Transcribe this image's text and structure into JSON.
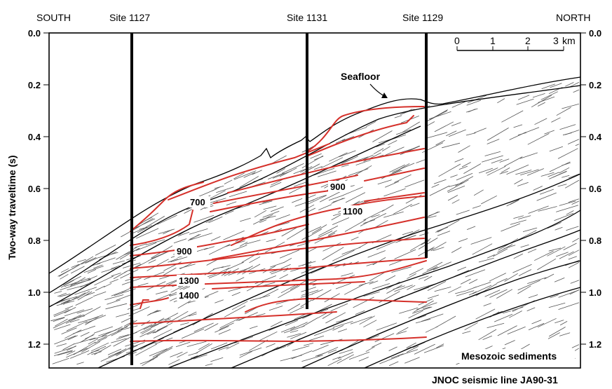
{
  "direction": {
    "left": "SOUTH",
    "right": "NORTH"
  },
  "sites": [
    "Site 1127",
    "Site 1131",
    "Site 1129"
  ],
  "axis": {
    "ylabel": "Two-way traveltime (s)",
    "ticks": [
      "0.0",
      "0.2",
      "0.4",
      "0.6",
      "0.8",
      "1.0",
      "1.2"
    ]
  },
  "scale": {
    "ticks": [
      "0",
      "1",
      "2",
      "3"
    ],
    "unit": "km"
  },
  "labels": {
    "seafloor": "Seafloor",
    "mesozoic": "Mesozoic sediments",
    "seismic_line": "JNOC seismic line JA90-31"
  },
  "picks": [
    "700",
    "900",
    "1100",
    "900",
    "1300",
    "1400"
  ],
  "colors": {
    "horizon_red": "#d5302a",
    "structure_black": "#000000",
    "reflector_gray": "#555555"
  }
}
